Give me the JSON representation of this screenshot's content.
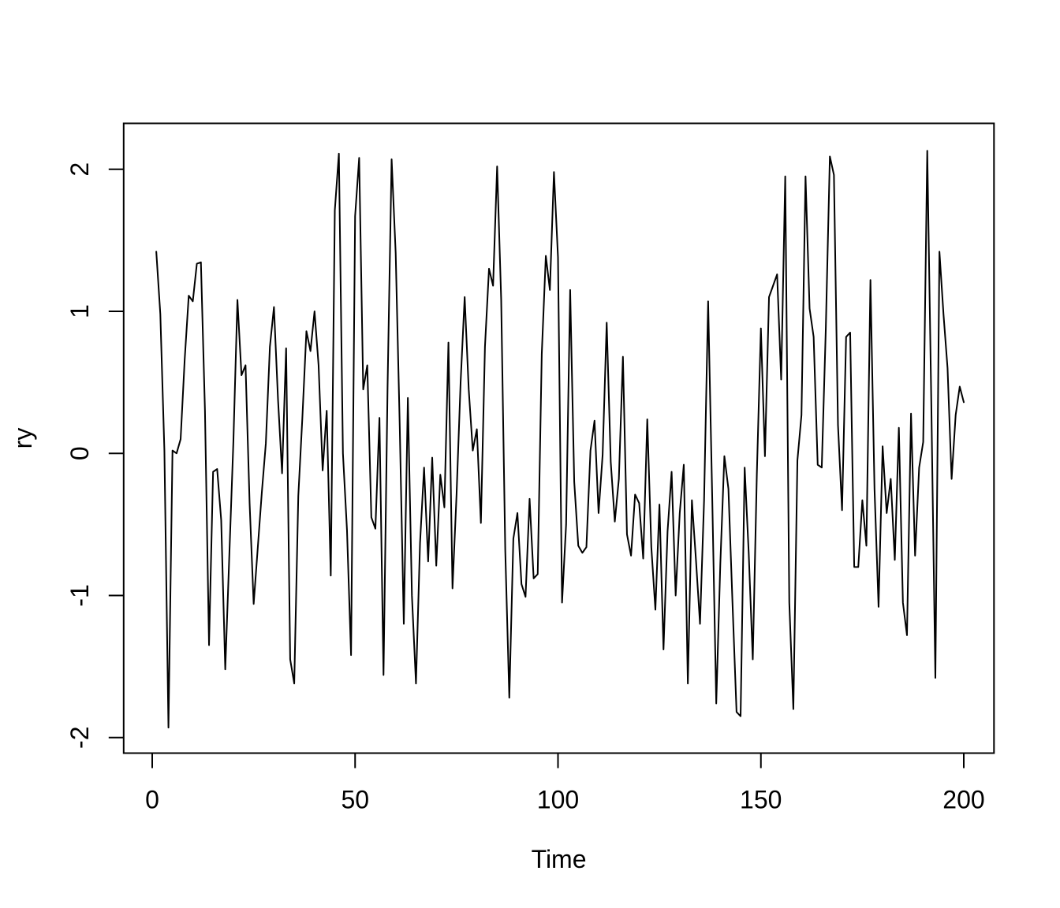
{
  "chart_data": {
    "type": "line",
    "title": "",
    "xlabel": "Time",
    "ylabel": "ry",
    "x_start": 1,
    "x_step": 1,
    "xlim": [
      1,
      200
    ],
    "ylim": [
      -1.95,
      2.16
    ],
    "xticks": [
      0,
      50,
      100,
      150,
      200
    ],
    "yticks": [
      -2,
      -1,
      0,
      1,
      2
    ],
    "series_name": "ry",
    "values": [
      1.42,
      0.98,
      0.02,
      -1.93,
      0.02,
      0.0,
      0.1,
      0.66,
      1.11,
      1.07,
      1.335,
      1.345,
      0.3,
      -1.35,
      -0.13,
      -0.11,
      -0.47,
      -1.52,
      -0.72,
      0.08,
      1.08,
      0.55,
      0.62,
      -0.35,
      -1.06,
      -0.67,
      -0.28,
      0.07,
      0.75,
      1.03,
      0.38,
      -0.14,
      0.74,
      -1.45,
      -1.62,
      -0.3,
      0.25,
      0.86,
      0.72,
      1.0,
      0.62,
      -0.12,
      0.3,
      -0.86,
      1.71,
      2.11,
      0.0,
      -0.54,
      -1.42,
      1.67,
      2.08,
      0.45,
      0.62,
      -0.45,
      -0.53,
      0.25,
      -1.56,
      0.47,
      2.07,
      1.41,
      0.19,
      -1.2,
      0.39,
      -1.0,
      -1.62,
      -0.63,
      -0.1,
      -0.76,
      -0.03,
      -0.79,
      -0.15,
      -0.38,
      0.78,
      -0.95,
      -0.29,
      0.5,
      1.1,
      0.45,
      0.02,
      0.17,
      -0.49,
      0.75,
      1.3,
      1.18,
      2.02,
      1.08,
      -0.68,
      -1.72,
      -0.6,
      -0.42,
      -0.92,
      -1.01,
      -0.32,
      -0.88,
      -0.85,
      0.7,
      1.39,
      1.15,
      1.98,
      1.38,
      -1.05,
      -0.5,
      1.15,
      -0.2,
      -0.65,
      -0.7,
      -0.66,
      0.02,
      0.23,
      -0.42,
      -0.01,
      0.92,
      -0.06,
      -0.48,
      -0.18,
      0.68,
      -0.57,
      -0.72,
      -0.29,
      -0.35,
      -0.74,
      0.24,
      -0.66,
      -1.1,
      -0.36,
      -1.38,
      -0.55,
      -0.13,
      -1.0,
      -0.42,
      -0.08,
      -1.62,
      -0.33,
      -0.75,
      -1.2,
      -0.33,
      1.07,
      -0.3,
      -1.76,
      -0.78,
      -0.02,
      -0.25,
      -1.05,
      -1.82,
      -1.85,
      -0.1,
      -0.7,
      -1.45,
      -0.15,
      0.88,
      -0.02,
      1.1,
      1.18,
      1.26,
      0.52,
      1.95,
      -1.05,
      -1.8,
      -0.05,
      0.27,
      1.95,
      1.02,
      0.82,
      -0.08,
      -0.1,
      0.88,
      2.09,
      1.96,
      0.2,
      -0.4,
      0.82,
      0.85,
      -0.8,
      -0.8,
      -0.33,
      -0.65,
      1.22,
      -0.25,
      -1.08,
      0.05,
      -0.42,
      -0.18,
      -0.75,
      0.18,
      -1.05,
      -1.28,
      0.28,
      -0.72,
      -0.1,
      0.08,
      2.13,
      0.35,
      -1.58,
      1.42,
      0.98,
      0.6,
      -0.18,
      0.27,
      0.47,
      0.36
    ],
    "line_color": "#000000",
    "background_color": "#ffffff",
    "grid": "off",
    "legend": "none"
  }
}
